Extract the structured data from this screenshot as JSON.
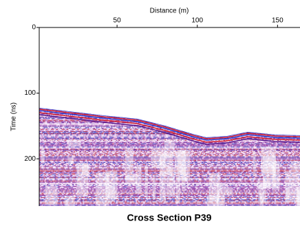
{
  "chart_data": {
    "type": "radargram",
    "title": "Cross Section P39",
    "xlabel": "Distance (m)",
    "ylabel": "Time (ns)",
    "xlim": [
      1.5,
      164
    ],
    "xticks": [
      50,
      100,
      150
    ],
    "ylim": [
      0,
      272
    ],
    "yticks": [
      0,
      100,
      200
    ]
  }
}
